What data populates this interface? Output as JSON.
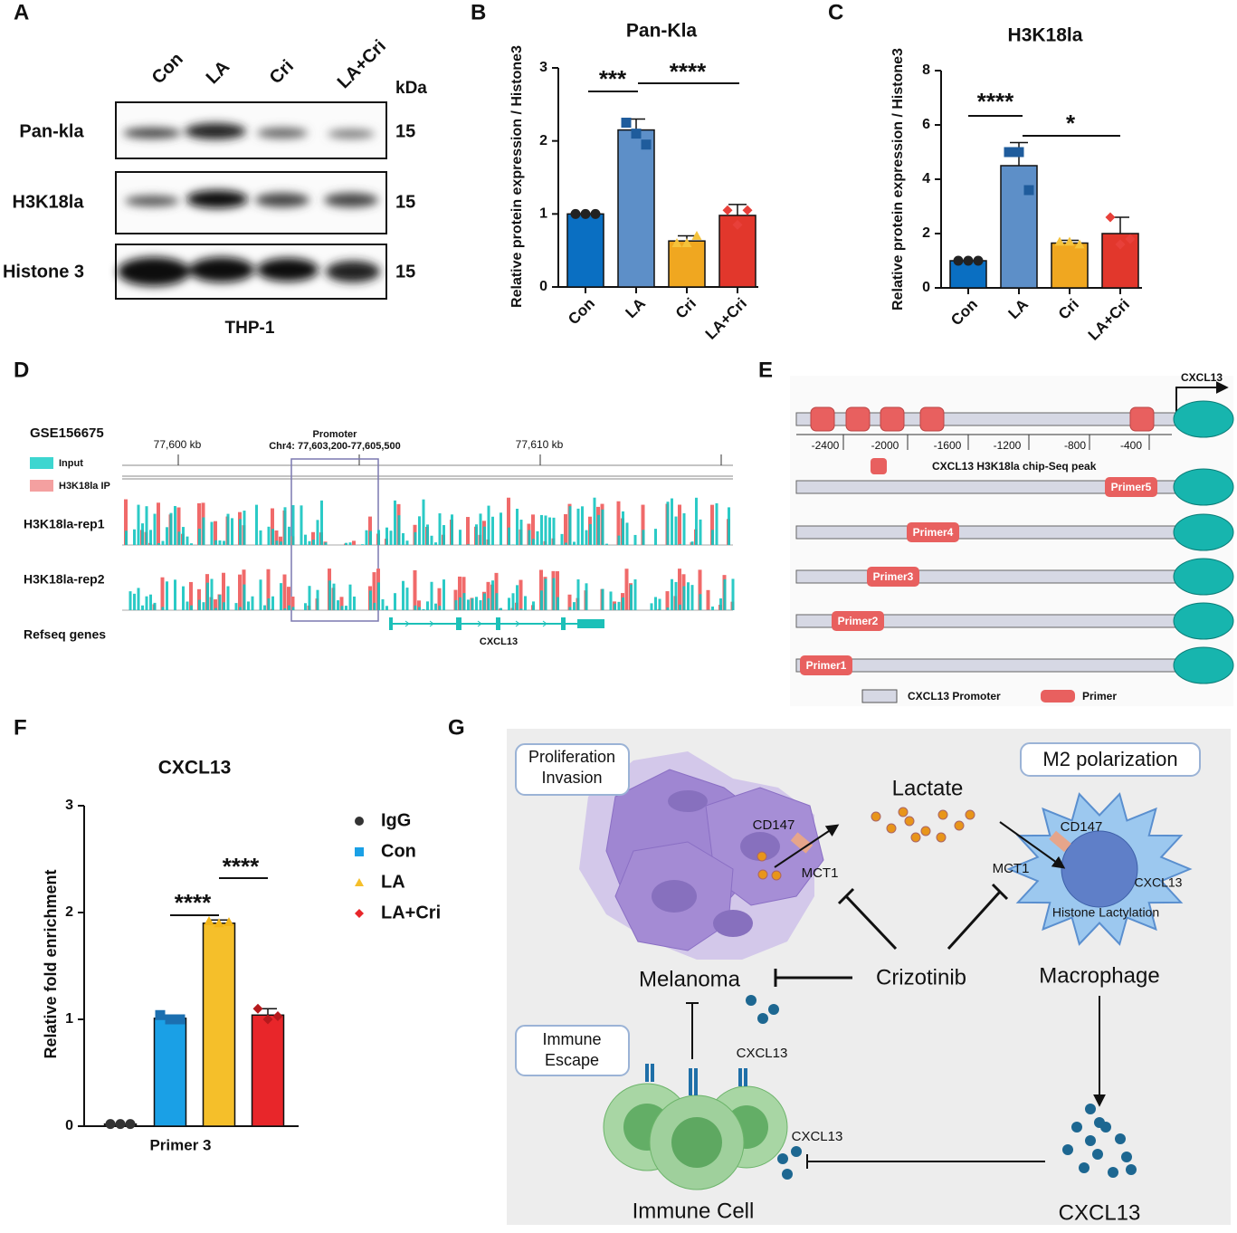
{
  "chart_data": [
    {
      "type": "bar",
      "label": "B",
      "title": "Pan-Kla",
      "ylabel": "Relative protein  expression / Histone3",
      "categories": [
        "Con",
        "LA",
        "Cri",
        "LA+Cri"
      ],
      "values": [
        1.0,
        2.15,
        0.63,
        0.98
      ],
      "errors": [
        0,
        0.15,
        0.07,
        0.15
      ],
      "colors": [
        "#0a6fc2",
        "#5d8fc8",
        "#f0a720",
        "#e2372c"
      ],
      "markers": [
        "circle",
        "square",
        "triangle",
        "diamond"
      ],
      "point_colors": [
        "#222222",
        "#1f5c9c",
        "#f5c33c",
        "#e8403a"
      ],
      "points": [
        [
          1,
          1,
          1
        ],
        [
          2.25,
          2.1,
          1.95
        ],
        [
          0.6,
          0.6,
          0.7
        ],
        [
          1.05,
          0.85,
          1.05
        ]
      ],
      "ylim": [
        0,
        3
      ],
      "yticks": [
        0,
        1,
        2,
        3
      ],
      "annotations": [
        "***",
        "****"
      ]
    },
    {
      "type": "bar",
      "label": "C",
      "title": "H3K18la",
      "ylabel": "Relative protein  expression / Histone3",
      "categories": [
        "Con",
        "LA",
        "Cri",
        "LA+Cri"
      ],
      "values": [
        1.0,
        4.5,
        1.65,
        2.0
      ],
      "errors": [
        0,
        0.85,
        0.1,
        0.6
      ],
      "colors": [
        "#0a6fc2",
        "#5d8fc8",
        "#f0a720",
        "#e2372c"
      ],
      "markers": [
        "circle",
        "square",
        "triangle",
        "diamond"
      ],
      "point_colors": [
        "#222222",
        "#1f5c9c",
        "#f5c33c",
        "#e8403a"
      ],
      "points": [
        [
          1,
          1,
          1
        ],
        [
          5,
          5,
          3.6
        ],
        [
          1.7,
          1.7,
          1.6
        ],
        [
          2.6,
          1.6,
          1.8
        ]
      ],
      "ylim": [
        0,
        8
      ],
      "yticks": [
        0,
        2,
        4,
        6,
        8
      ],
      "annotations": [
        "****",
        "*"
      ]
    },
    {
      "type": "grouped_bar",
      "label": "F",
      "title": "CXCL13",
      "ylabel": "Relative fold enrichment",
      "categories": [
        "Primer 3"
      ],
      "series": [
        {
          "name": "IgG",
          "color": "#333333",
          "marker": "circle",
          "point_color": "#333333",
          "values": [
            0.02
          ],
          "errors": [
            0
          ],
          "points": [
            [
              0.02,
              0.02,
              0.02
            ]
          ]
        },
        {
          "name": "Con",
          "color": "#1aa0e6",
          "marker": "square",
          "point_color": "#1b6fb0",
          "values": [
            1.01
          ],
          "errors": [
            0.03
          ],
          "points": [
            [
              1.04,
              1.0,
              1.0
            ]
          ]
        },
        {
          "name": "LA",
          "color": "#f5bf2a",
          "marker": "triangle",
          "point_color": "#f2b519",
          "values": [
            1.9
          ],
          "errors": [
            0.03
          ],
          "points": [
            [
              1.92,
              1.9,
              1.91
            ]
          ]
        },
        {
          "name": "LA+Cri",
          "color": "#e8262a",
          "marker": "diamond",
          "point_color": "#b5191c",
          "values": [
            1.04
          ],
          "errors": [
            0.06
          ],
          "points": [
            [
              1.1,
              1.0,
              1.03
            ]
          ]
        }
      ],
      "ylim": [
        0,
        3
      ],
      "yticks": [
        0,
        1,
        2,
        3
      ],
      "annotations": [
        "****",
        "****"
      ]
    }
  ],
  "panel_a": {
    "label": "A",
    "lanes": [
      "Con",
      "LA",
      "Cri",
      "LA+Cri"
    ],
    "unit": "kDa",
    "rows": [
      {
        "name": "Pan-kla",
        "kda": "15"
      },
      {
        "name": "H3K18la",
        "kda": "15"
      },
      {
        "name": "Histone 3",
        "kda": "15"
      }
    ],
    "cell_line": "THP-1"
  },
  "panel_d": {
    "label": "D",
    "dataset": "GSE156675",
    "legend": [
      "Input",
      "H3K18la IP"
    ],
    "ruler": [
      "77,600 kb",
      "77,610 kb"
    ],
    "promoter": "Promoter",
    "region": "Chr4: 77,603,200-77,605,500",
    "tracks": [
      "H3K18la-rep1",
      "H3K18la-rep2",
      "Refseq genes"
    ],
    "gene": "CXCL13"
  },
  "panel_e": {
    "label": "E",
    "gene": "CXCL13",
    "positions": [
      "-2400",
      "-2000",
      "-1600",
      "-1200",
      "-800",
      "-400"
    ],
    "peak_legend": "CXCL13 H3K18la chip-Seq peak",
    "primers": [
      "Primer5",
      "Primer4",
      "Primer3",
      "Primer2",
      "Primer1"
    ],
    "legend": [
      "CXCL13 Promoter",
      "Primer"
    ]
  },
  "panel_g": {
    "label": "G",
    "box1": [
      "Proliferation",
      "Invasion"
    ],
    "box2": [
      "M2 polarization"
    ],
    "box3": [
      "Immune",
      "Escape"
    ],
    "lactate": "Lactate",
    "cd147_a": "CD147",
    "mct1_a": "MCT1",
    "cd147_b": "CD147",
    "mct1_b": "MCT1",
    "cxcl13_nuc": "CXCL13",
    "histone": "Histone Lactylation",
    "melanoma": "Melanoma",
    "drug": "Crizotinib",
    "macrophage": "Macrophage",
    "cxcl13_a": "CXCL13",
    "cxcl13_b": "CXCL13",
    "immune": "Immune Cell",
    "cxcl13_c": "CXCL13"
  }
}
